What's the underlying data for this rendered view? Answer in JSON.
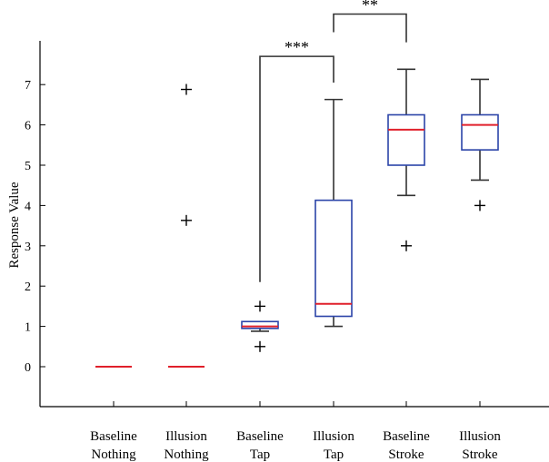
{
  "chart_data": {
    "type": "box",
    "ylabel": "Response Value",
    "xlabel": "",
    "ylim": [
      -1,
      8.2
    ],
    "yticks": [
      0,
      1,
      2,
      3,
      4,
      5,
      6,
      7
    ],
    "grid": false,
    "groups": [
      {
        "label_line1": "Baseline",
        "label_line2": "Nothing",
        "min": 0,
        "q1": 0,
        "median": 0,
        "q3": 0,
        "max": 0,
        "outliers": []
      },
      {
        "label_line1": "Illusion",
        "label_line2": "Nothing",
        "min": 0,
        "q1": 0,
        "median": 0,
        "q3": 0,
        "max": 0,
        "outliers": [
          6.88,
          3.63
        ]
      },
      {
        "label_line1": "Baseline",
        "label_line2": "Tap",
        "min": 0.88,
        "q1": 0.95,
        "median": 1.0,
        "q3": 1.12,
        "max": 1.12,
        "outliers": [
          1.5,
          0.5
        ]
      },
      {
        "label_line1": "Illusion",
        "label_line2": "Tap",
        "min": 1.0,
        "q1": 1.25,
        "median": 1.56,
        "q3": 4.13,
        "max": 6.63,
        "outliers": []
      },
      {
        "label_line1": "Baseline",
        "label_line2": "Stroke",
        "min": 4.25,
        "q1": 5.0,
        "median": 5.88,
        "q3": 6.25,
        "max": 7.38,
        "outliers": [
          3.0
        ]
      },
      {
        "label_line1": "Illusion",
        "label_line2": "Stroke",
        "min": 4.63,
        "q1": 5.38,
        "median": 6.0,
        "q3": 6.25,
        "max": 7.13,
        "outliers": [
          4.0
        ]
      }
    ],
    "significance": [
      {
        "from_group": 2,
        "to_group": 3,
        "from_y": 2.1,
        "to_y": 7.05,
        "top_y": 7.7,
        "label": "***"
      },
      {
        "from_group": 3,
        "to_group": 4,
        "from_y": 8.3,
        "to_y": 8.05,
        "top_y": 8.75,
        "label": "**"
      }
    ],
    "colors": {
      "box": "#2b44a8",
      "median": "#e0202b",
      "whisker": "#333333",
      "outlier": "#000000"
    }
  }
}
